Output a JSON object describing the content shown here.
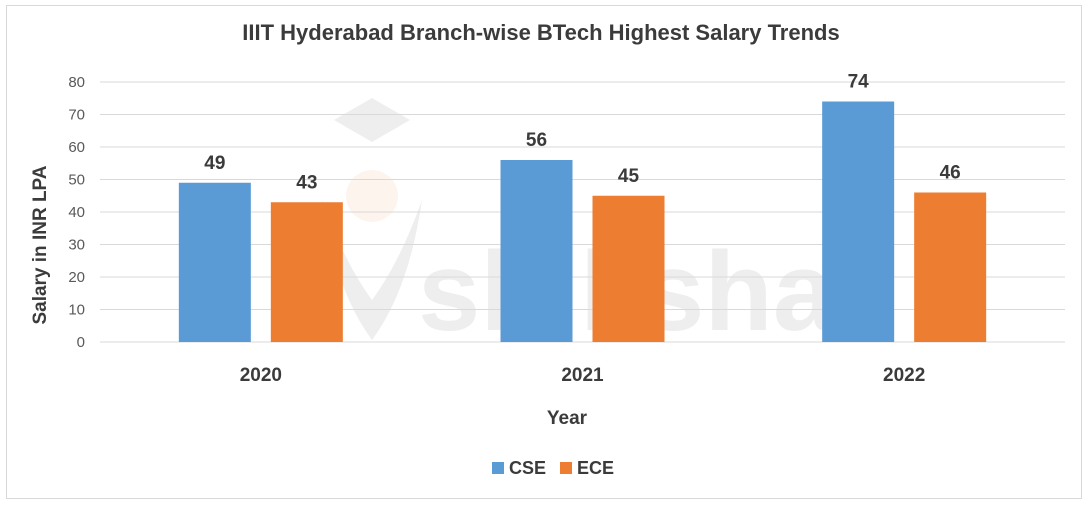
{
  "chart_data": {
    "type": "bar",
    "title": "IIIT Hyderabad Branch-wise BTech Highest Salary Trends",
    "xlabel": "Year",
    "ylabel": "Salary in INR LPA",
    "categories": [
      "2020",
      "2021",
      "2022"
    ],
    "series": [
      {
        "name": "CSE",
        "values": [
          49,
          56,
          74
        ],
        "color": "#5b9bd5"
      },
      {
        "name": "ECE",
        "values": [
          43,
          45,
          46
        ],
        "color": "#ed7d31"
      }
    ],
    "ylim": [
      0,
      80
    ],
    "yticks": [
      "0",
      "10",
      "20",
      "30",
      "40",
      "50",
      "60",
      "70",
      "80"
    ],
    "grid": true,
    "legend": "bottom",
    "watermark": "shiksha"
  }
}
